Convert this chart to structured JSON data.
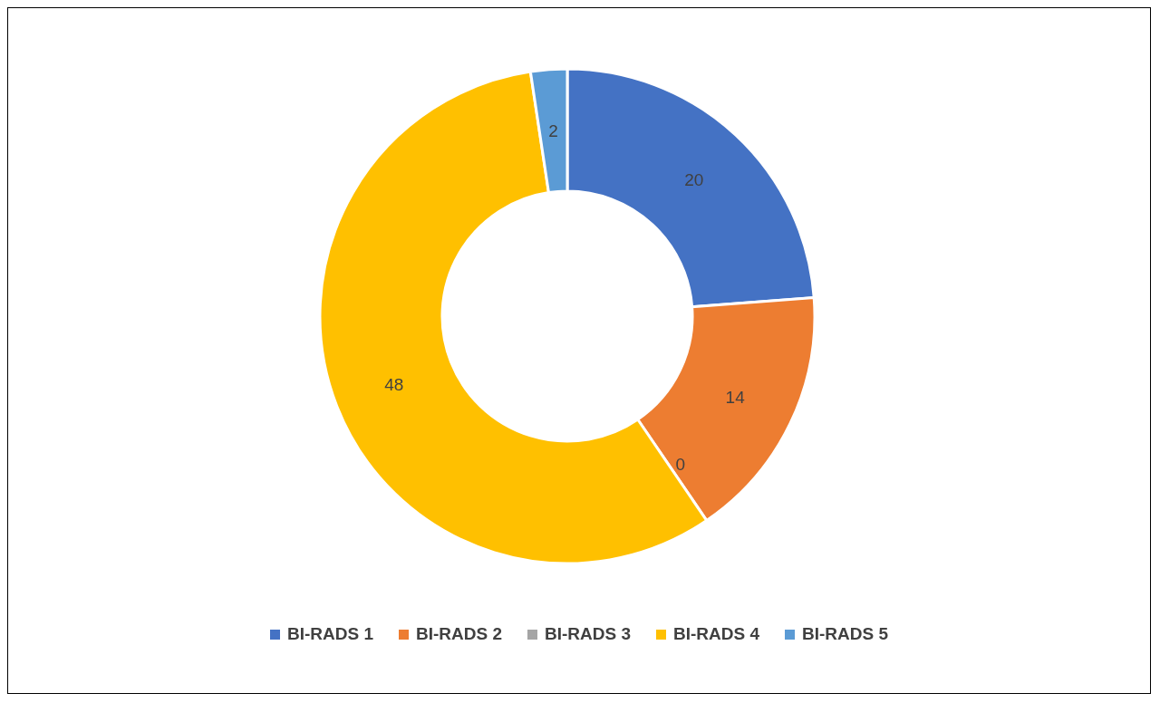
{
  "chart_data": {
    "type": "donut",
    "categories": [
      "BI-RADS 1",
      "BI-RADS 2",
      "BI-RADS 3",
      "BI-RADS 4",
      "BI-RADS 5"
    ],
    "values": [
      20,
      14,
      0,
      48,
      2
    ],
    "colors": [
      "#4472c4",
      "#ed7d31",
      "#a5a5a5",
      "#ffc000",
      "#5b9bd5"
    ],
    "value_labels": [
      "20",
      "14",
      "0",
      "48",
      "2"
    ],
    "legend": "bottom"
  }
}
